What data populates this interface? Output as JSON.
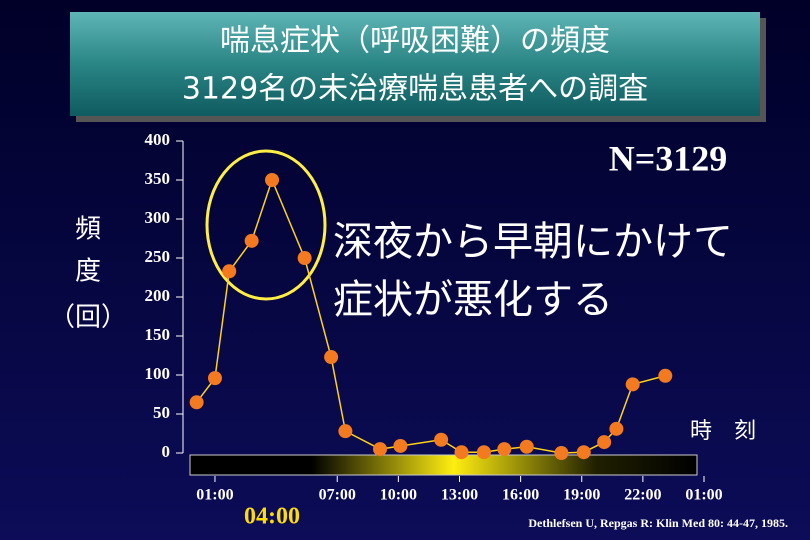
{
  "chart_data": {
    "type": "line",
    "title": [
      "喘息症状（呼吸困難）の頻度",
      "3129名の未治療喘息患者への調査"
    ],
    "ylabel_lines": [
      "頻",
      "度",
      "（回）"
    ],
    "xlabel": "時　刻",
    "annotations": [
      "N=3129",
      "深夜から早朝にかけて",
      "症状が悪化する"
    ],
    "highlight_time": "04:00",
    "citation": "Dethlefsen U, Repgas R: Klin Med 80: 44-47, 1985.",
    "x": [
      0.1,
      1.0,
      1.7,
      2.8,
      3.8,
      5.4,
      6.7,
      7.4,
      9.1,
      10.1,
      12.1,
      13.1,
      14.2,
      15.2,
      16.3,
      18.0,
      19.1,
      20.1,
      20.7,
      21.5,
      23.1
    ],
    "series": [
      {
        "color": "#f47a20",
        "line_color": "#ffd21a",
        "values": [
          65,
          96,
          233,
          272,
          350,
          250,
          123,
          28,
          5,
          9,
          17,
          1,
          1,
          5,
          8,
          0,
          1,
          14,
          31,
          88,
          99
        ]
      }
    ],
    "xlim": [
      0,
      25
    ],
    "xticks": [
      {
        "value": 1,
        "label": "01:00"
      },
      {
        "value": 7,
        "label": "07:00"
      },
      {
        "value": 10,
        "label": "10:00"
      },
      {
        "value": 13,
        "label": "13:00"
      },
      {
        "value": 16,
        "label": "16:00"
      },
      {
        "value": 19,
        "label": "19:00"
      },
      {
        "value": 22,
        "label": "22:00"
      },
      {
        "value": 25,
        "label": "01:00"
      }
    ],
    "ylim": [
      0,
      400
    ],
    "yticks": [
      0,
      50,
      100,
      150,
      200,
      250,
      300,
      350,
      400
    ]
  }
}
